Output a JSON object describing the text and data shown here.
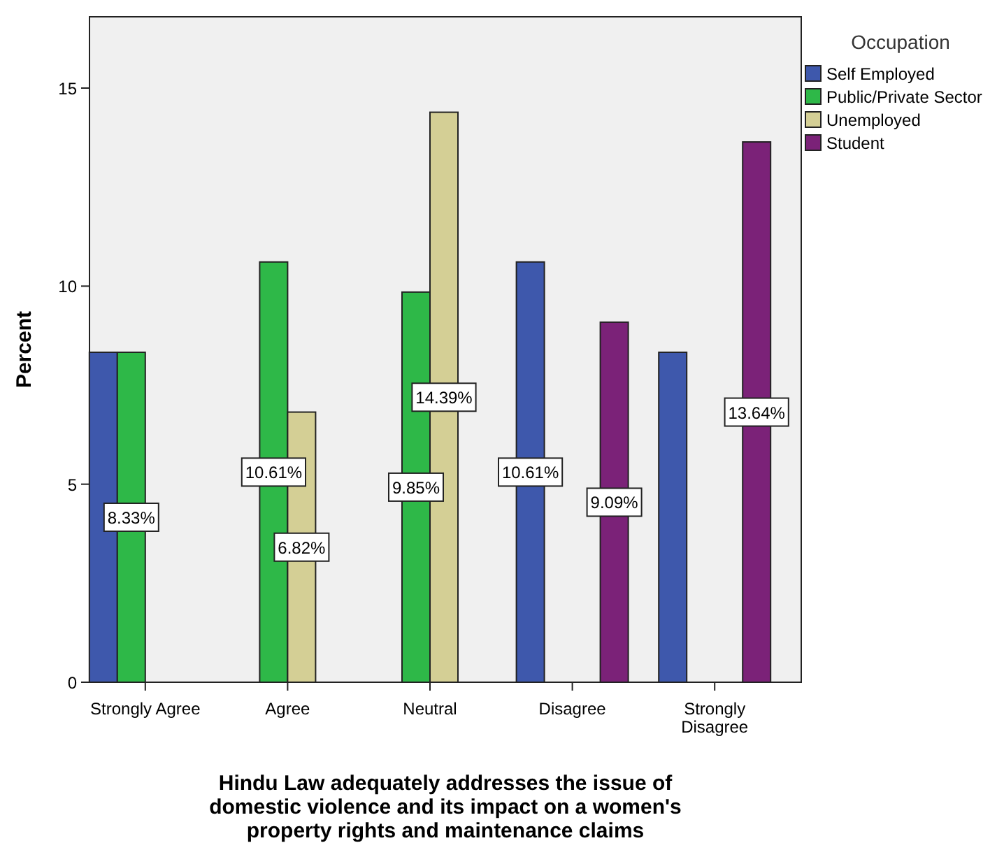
{
  "chart_data": {
    "type": "bar",
    "xlabel": "Hindu Law adequately addresses the issue of domestic violence and its impact on a women's property rights and maintenance claims",
    "ylabel": "Percent",
    "legend_title": "Occupation",
    "categories": [
      "Strongly Agree",
      "Agree",
      "Neutral",
      "Disagree",
      "Strongly Disagree"
    ],
    "series": [
      {
        "name": "Self Employed",
        "color": "#3e58ac",
        "values": [
          8.33,
          null,
          null,
          10.61,
          8.33
        ],
        "value_labels": [
          null,
          null,
          null,
          "10.61%",
          null
        ]
      },
      {
        "name": "Public/Private Sector",
        "color": "#2eb848",
        "values": [
          8.33,
          10.61,
          9.85,
          null,
          null
        ],
        "value_labels": [
          "8.33%",
          "10.61%",
          "9.85%",
          null,
          null
        ]
      },
      {
        "name": "Unemployed",
        "color": "#d4cf95",
        "values": [
          null,
          6.82,
          14.39,
          null,
          null
        ],
        "value_labels": [
          null,
          "6.82%",
          "14.39%",
          null,
          null
        ]
      },
      {
        "name": "Student",
        "color": "#7b2278",
        "values": [
          null,
          null,
          null,
          9.09,
          13.64
        ],
        "value_labels": [
          null,
          null,
          null,
          "9.09%",
          "13.64%"
        ]
      }
    ],
    "ylim": [
      0,
      16.8
    ],
    "yticks": [
      0,
      5,
      10,
      15
    ],
    "grid": false,
    "legend": "top right"
  }
}
